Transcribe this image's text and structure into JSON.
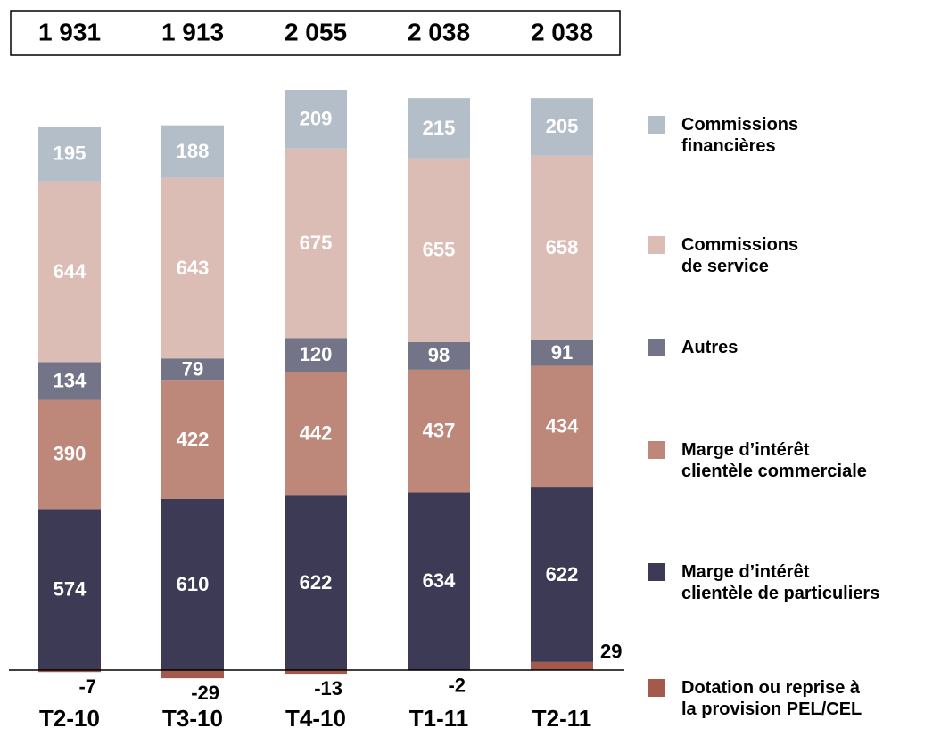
{
  "chart_data": {
    "type": "bar",
    "stacked": true,
    "categories": [
      "T2-10",
      "T3-10",
      "T4-10",
      "T1-11",
      "T2-11"
    ],
    "totals": {
      "values": [
        1931,
        1913,
        2055,
        2038,
        2038
      ],
      "value_labels": [
        "1 931",
        "1 913",
        "2 055",
        "2 038",
        "2 038"
      ]
    },
    "series": [
      {
        "name": "Dotation ou reprise à la provision PEL/CEL",
        "color": "#a35a4b",
        "values": [
          -7,
          -29,
          -13,
          -2,
          29
        ]
      },
      {
        "name": "Marge d’intérêt clientèle de particuliers",
        "color": "#3d3a56",
        "values": [
          574,
          610,
          622,
          634,
          622
        ]
      },
      {
        "name": "Marge d’intérêt clientèle commerciale",
        "color": "#bd877a",
        "values": [
          390,
          422,
          442,
          437,
          434
        ]
      },
      {
        "name": "Autres",
        "color": "#737488",
        "values": [
          134,
          79,
          120,
          98,
          91
        ]
      },
      {
        "name": "Commissions de service",
        "color": "#dbbdb5",
        "values": [
          644,
          643,
          675,
          655,
          658
        ]
      },
      {
        "name": "Commissions financières",
        "color": "#b4bec9",
        "values": [
          195,
          188,
          209,
          215,
          205
        ]
      }
    ]
  }
}
